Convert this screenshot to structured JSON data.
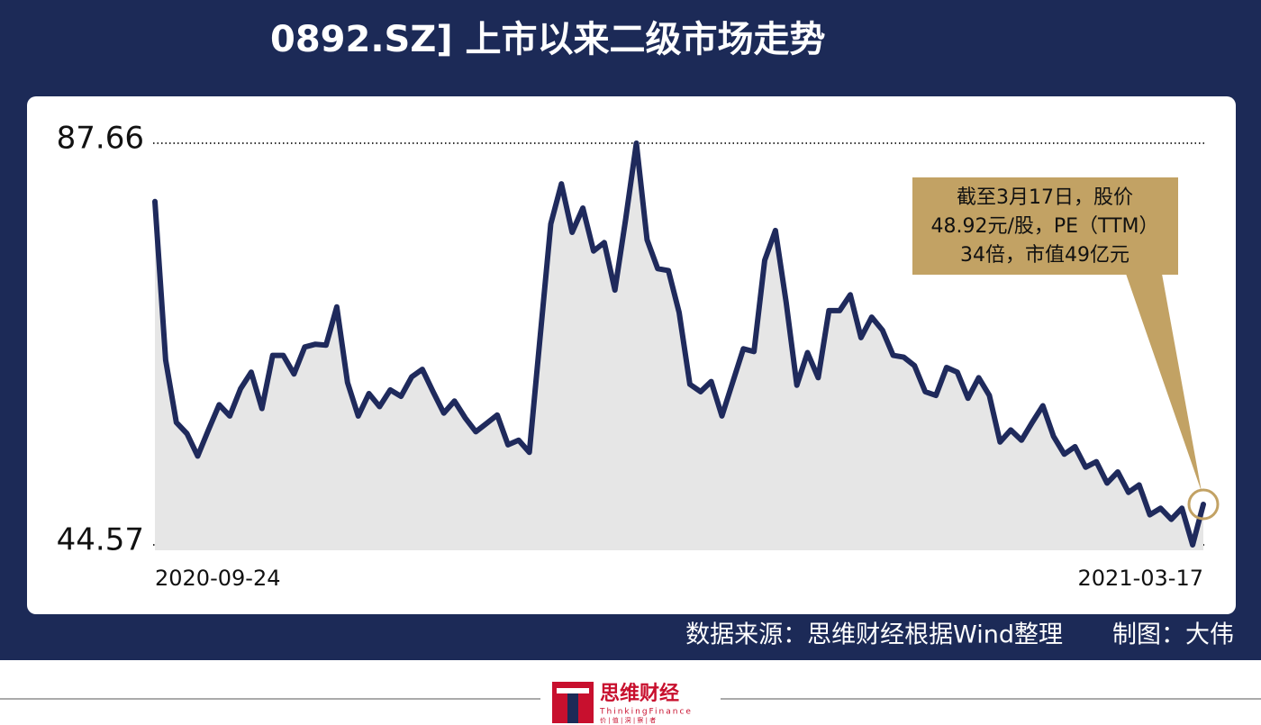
{
  "chart_data": {
    "type": "line",
    "title": "0892.SZ] 上市以来二级市场走势",
    "categories": [
      "2020-09-24",
      null,
      null,
      null,
      null,
      null,
      null,
      null,
      null,
      null,
      null,
      null,
      null,
      null,
      null,
      null,
      null,
      null,
      null,
      null,
      null,
      null,
      null,
      null,
      null,
      null,
      null,
      null,
      null,
      null,
      null,
      null,
      null,
      null,
      null,
      null,
      null,
      null,
      null,
      null,
      null,
      null,
      null,
      null,
      null,
      null,
      null,
      null,
      null,
      null,
      null,
      null,
      null,
      null,
      null,
      null,
      null,
      null,
      null,
      null,
      null,
      null,
      null,
      null,
      null,
      null,
      null,
      null,
      null,
      null,
      null,
      null,
      null,
      null,
      null,
      null,
      null,
      null,
      null,
      null,
      null,
      null,
      null,
      null,
      null,
      null,
      null,
      null,
      null,
      null,
      null,
      null,
      null,
      null,
      null,
      null,
      null,
      null,
      "2021-03-17"
    ],
    "series": [
      {
        "color": "#1f2a5c",
        "fill": "#e6e6e6",
        "values": [
          81.4,
          64.4,
          57.7,
          56.5,
          54.1,
          56.9,
          59.6,
          58.4,
          61.3,
          63.1,
          59.2,
          64.9,
          64.9,
          62.9,
          65.8,
          66.1,
          66.0,
          70.1,
          62.0,
          58.4,
          60.8,
          59.4,
          61.2,
          60.5,
          62.6,
          63.4,
          61.0,
          58.7,
          60.0,
          58.2,
          56.7,
          57.6,
          58.5,
          55.3,
          55.8,
          54.5,
          66.8,
          79.0,
          83.3,
          78.1,
          80.7,
          76.1,
          77.0,
          71.9,
          79.5,
          87.66,
          77.3,
          74.2,
          74.0,
          69.5,
          61.8,
          61.0,
          62.1,
          58.4,
          62.0,
          65.6,
          65.3,
          75.1,
          78.3,
          70.6,
          61.7,
          65.2,
          62.5,
          69.7,
          69.7,
          71.4,
          66.8,
          69.0,
          67.6,
          64.9,
          64.7,
          63.8,
          61.0,
          60.6,
          63.6,
          63.1,
          60.3,
          62.5,
          60.6,
          55.6,
          56.9,
          55.8,
          57.7,
          59.5,
          56.2,
          54.3,
          55.1,
          52.9,
          53.5,
          51.2,
          52.4,
          50.2,
          51.0,
          47.8,
          48.5,
          47.3,
          48.5,
          44.57,
          48.92
        ]
      }
    ],
    "ylim": [
      44.57,
      87.66
    ],
    "yticks": [
      44.57,
      87.66
    ],
    "annotation": [
      "截至3月17日，股价",
      "48.92元/股，PE（TTM）",
      "34倍，市值49亿元"
    ],
    "source": "数据来源：思维财经根据Wind整理",
    "credit": "制图：大伟",
    "logo": {
      "name": "思维财经",
      "english": "ThinkingFinance",
      "motto": "价 | 值 | 洞 | 察 | 者"
    }
  }
}
